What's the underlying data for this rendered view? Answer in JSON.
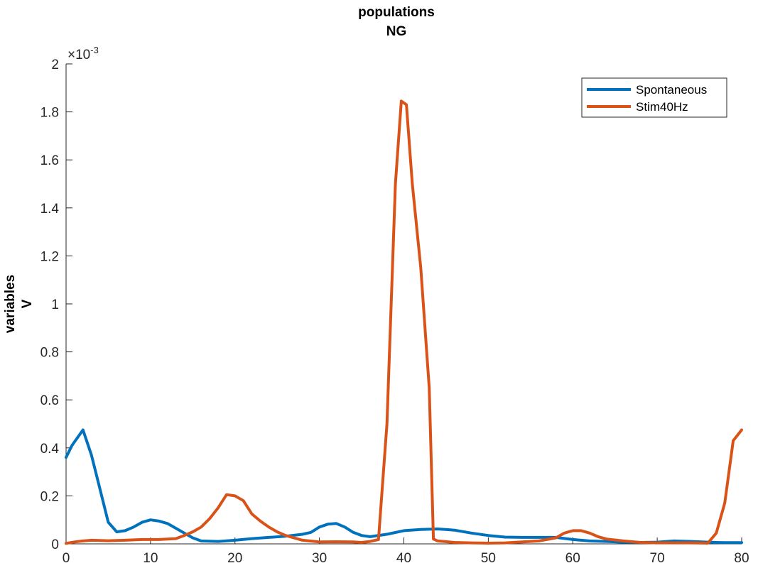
{
  "chart_data": {
    "type": "line",
    "title": [
      "populations",
      "NG"
    ],
    "xlabel": "",
    "ylabel": [
      "variables",
      "V"
    ],
    "xlim": [
      0,
      80
    ],
    "ylim": [
      0,
      0.002
    ],
    "xticks": [
      "0",
      "10",
      "20",
      "30",
      "40",
      "50",
      "60",
      "70",
      "80"
    ],
    "yticks": [
      "0",
      "0.2",
      "0.4",
      "0.6",
      "0.8",
      "1",
      "1.2",
      "1.4",
      "1.6",
      "1.8",
      "2"
    ],
    "y_multiplier_base": "×10",
    "y_multiplier_exp": "-3",
    "legend_position": "top-right",
    "series": [
      {
        "name": "Spontaneous",
        "color": "#0072BD",
        "points": [
          [
            0,
            0.00036
          ],
          [
            0.7,
            0.00041
          ],
          [
            2,
            0.000475
          ],
          [
            3,
            0.00037
          ],
          [
            4,
            0.00023
          ],
          [
            5,
            9e-05
          ],
          [
            6,
            5e-05
          ],
          [
            7,
            5.5e-05
          ],
          [
            8,
            7e-05
          ],
          [
            9,
            9e-05
          ],
          [
            10,
            0.0001
          ],
          [
            11,
            9.5e-05
          ],
          [
            12,
            8.5e-05
          ],
          [
            13,
            6.5e-05
          ],
          [
            14,
            4.5e-05
          ],
          [
            15,
            2.5e-05
          ],
          [
            16,
            1.2e-05
          ],
          [
            18,
            1e-05
          ],
          [
            20,
            1.5e-05
          ],
          [
            22,
            2.2e-05
          ],
          [
            24,
            2.7e-05
          ],
          [
            26,
            3.2e-05
          ],
          [
            28,
            4e-05
          ],
          [
            29,
            4.8e-05
          ],
          [
            30,
            7e-05
          ],
          [
            31,
            8.2e-05
          ],
          [
            32,
            8.5e-05
          ],
          [
            33,
            7e-05
          ],
          [
            34,
            4.8e-05
          ],
          [
            35,
            3.5e-05
          ],
          [
            36,
            3e-05
          ],
          [
            38,
            4e-05
          ],
          [
            40,
            5.5e-05
          ],
          [
            42,
            6e-05
          ],
          [
            44,
            6.2e-05
          ],
          [
            46,
            5.7e-05
          ],
          [
            48,
            4.5e-05
          ],
          [
            50,
            3.5e-05
          ],
          [
            52,
            2.8e-05
          ],
          [
            54,
            2.7e-05
          ],
          [
            56,
            2.7e-05
          ],
          [
            58,
            2.7e-05
          ],
          [
            60,
            1.8e-05
          ],
          [
            62,
            1.2e-05
          ],
          [
            64,
            1e-05
          ],
          [
            66,
            7e-06
          ],
          [
            68,
            6e-06
          ],
          [
            70,
            7e-06
          ],
          [
            72,
            1.2e-05
          ],
          [
            74,
            1e-05
          ],
          [
            76,
            7e-06
          ],
          [
            78,
            5e-06
          ],
          [
            80,
            5e-06
          ]
        ]
      },
      {
        "name": "Stim40Hz",
        "color": "#D95319",
        "points": [
          [
            0,
            2e-06
          ],
          [
            1,
            8e-06
          ],
          [
            2,
            1.2e-05
          ],
          [
            3,
            1.5e-05
          ],
          [
            5,
            1.3e-05
          ],
          [
            7,
            1.5e-05
          ],
          [
            9,
            1.8e-05
          ],
          [
            11,
            1.8e-05
          ],
          [
            13,
            2.2e-05
          ],
          [
            14,
            3.5e-05
          ],
          [
            15,
            5e-05
          ],
          [
            16,
            7e-05
          ],
          [
            17,
            0.000105
          ],
          [
            18,
            0.00015
          ],
          [
            19,
            0.000205
          ],
          [
            20,
            0.0002
          ],
          [
            21,
            0.00018
          ],
          [
            22,
            0.000125
          ],
          [
            23,
            9.5e-05
          ],
          [
            24,
            7e-05
          ],
          [
            25,
            5e-05
          ],
          [
            26,
            3.5e-05
          ],
          [
            28,
            1.5e-05
          ],
          [
            30,
            8e-06
          ],
          [
            32,
            9e-06
          ],
          [
            34,
            8e-06
          ],
          [
            35,
            6e-06
          ],
          [
            36,
            1e-05
          ],
          [
            37,
            1.8e-05
          ],
          [
            38,
            0.0005
          ],
          [
            39,
            0.0015
          ],
          [
            39.7,
            0.001845
          ],
          [
            40.3,
            0.00183
          ],
          [
            41,
            0.0015
          ],
          [
            42,
            0.00115
          ],
          [
            43,
            0.00065
          ],
          [
            43.5,
            2e-05
          ],
          [
            44,
            1.2e-05
          ],
          [
            46,
            6e-06
          ],
          [
            48,
            4e-06
          ],
          [
            50,
            3e-06
          ],
          [
            52,
            4e-06
          ],
          [
            54,
            8e-06
          ],
          [
            56,
            1.2e-05
          ],
          [
            58,
            2.5e-05
          ],
          [
            59,
            4.5e-05
          ],
          [
            60,
            5.5e-05
          ],
          [
            61,
            5.5e-05
          ],
          [
            62,
            4.5e-05
          ],
          [
            63,
            3e-05
          ],
          [
            64,
            2e-05
          ],
          [
            66,
            1.2e-05
          ],
          [
            68,
            6e-06
          ],
          [
            70,
            4e-06
          ],
          [
            72,
            4e-06
          ],
          [
            74,
            4e-06
          ],
          [
            76,
            3e-06
          ],
          [
            77,
            4.5e-05
          ],
          [
            78,
            0.00017
          ],
          [
            79,
            0.00043
          ],
          [
            80,
            0.000475
          ]
        ]
      }
    ]
  }
}
